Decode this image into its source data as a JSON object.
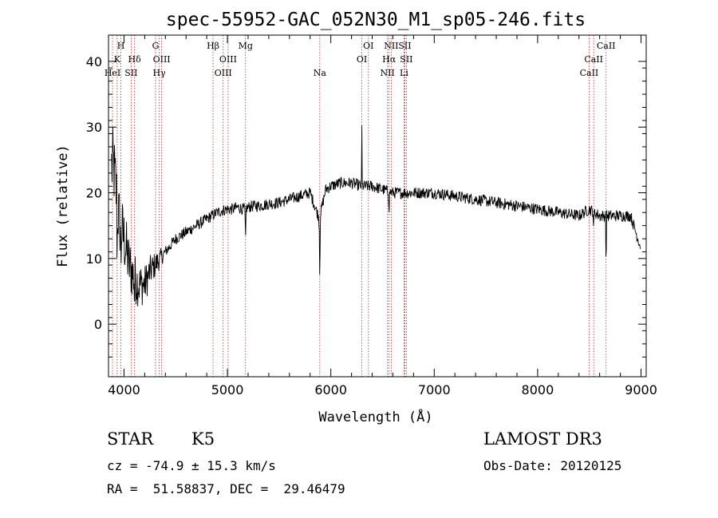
{
  "chart_data": {
    "type": "line",
    "title": "spec-55952-GAC_052N30_M1_sp05-246.fits",
    "xlabel": "Wavelength (Å)",
    "ylabel": "Flux (relative)",
    "xlim": [
      3850,
      9050
    ],
    "ylim": [
      -8,
      44
    ],
    "xticks": [
      4000,
      5000,
      6000,
      7000,
      8000,
      9000
    ],
    "yticks": [
      0,
      10,
      20,
      30,
      40
    ],
    "series": [
      {
        "name": "spectrum",
        "x": [
          3900,
          3950,
          4000,
          4050,
          4100,
          4150,
          4200,
          4250,
          4300,
          4350,
          4400,
          4450,
          4500,
          4550,
          4600,
          4650,
          4700,
          4750,
          4800,
          4850,
          4900,
          4950,
          5000,
          5050,
          5100,
          5150,
          5200,
          5250,
          5300,
          5400,
          5500,
          5600,
          5700,
          5800,
          5890,
          5950,
          6000,
          6100,
          6200,
          6300,
          6400,
          6500,
          6600,
          6700,
          6800,
          6900,
          7000,
          7200,
          7400,
          7600,
          7800,
          8000,
          8200,
          8400,
          8500,
          8600,
          8700,
          8800,
          8900,
          8990
        ],
        "y": [
          24,
          16,
          13,
          9,
          7,
          6,
          6,
          8,
          9,
          10,
          11,
          12,
          13,
          13.5,
          14,
          14.5,
          15,
          15.5,
          16,
          16.5,
          17,
          17.3,
          17.5,
          17.5,
          17.8,
          17.5,
          17.8,
          18,
          18,
          18.3,
          18.5,
          19,
          19.5,
          20,
          16,
          20.5,
          21,
          21.5,
          21.5,
          21,
          21,
          20.5,
          20,
          20,
          20,
          20,
          20,
          19.5,
          19,
          18.5,
          18,
          17.5,
          17,
          16.5,
          17.5,
          16.5,
          16.5,
          16.5,
          16.5,
          12
        ]
      }
    ],
    "spectral_lines": [
      {
        "label": "H",
        "wavelength": 3970,
        "row": 0
      },
      {
        "label": "K",
        "wavelength": 3934,
        "row": 1
      },
      {
        "label": "Hδ",
        "wavelength": 4102,
        "row": 1
      },
      {
        "label": "HeI",
        "wavelength": 3889,
        "row": 2
      },
      {
        "label": "SII",
        "wavelength": 4069,
        "row": 2
      },
      {
        "label": "G",
        "wavelength": 4305,
        "row": 0
      },
      {
        "label": "OIII",
        "wavelength": 4364,
        "row": 1
      },
      {
        "label": "Hγ",
        "wavelength": 4341,
        "row": 2
      },
      {
        "label": "Hβ",
        "wavelength": 4861,
        "row": 0
      },
      {
        "label": "OIII",
        "wavelength": 5007,
        "row": 1
      },
      {
        "label": "OIII",
        "wavelength": 4959,
        "row": 2
      },
      {
        "label": "Mg",
        "wavelength": 5175,
        "row": 0
      },
      {
        "label": "Na",
        "wavelength": 5893,
        "row": 2
      },
      {
        "label": "OI",
        "wavelength": 6364,
        "row": 0
      },
      {
        "label": "OI",
        "wavelength": 6300,
        "row": 1
      },
      {
        "label": "NII",
        "wavelength": 6584,
        "row": 0
      },
      {
        "label": "SII",
        "wavelength": 6716,
        "row": 0
      },
      {
        "label": "Hα",
        "wavelength": 6563,
        "row": 1
      },
      {
        "label": "SII",
        "wavelength": 6731,
        "row": 1
      },
      {
        "label": "NII",
        "wavelength": 6548,
        "row": 2
      },
      {
        "label": "Li",
        "wavelength": 6708,
        "row": 2
      },
      {
        "label": "CaII",
        "wavelength": 8662,
        "row": 0
      },
      {
        "label": "CaII",
        "wavelength": 8542,
        "row": 1
      },
      {
        "label": "CaII",
        "wavelength": 8498,
        "row": 2
      }
    ],
    "colors": {
      "spectrum": "#000000",
      "lines": "#cc2222",
      "axes": "#000000"
    }
  },
  "info": {
    "class": "STAR",
    "subclass": "K5",
    "survey": "LAMOST DR3",
    "redshift": "cz = -74.9 ± 15.3 km/s",
    "obs_date": "Obs-Date: 20120125",
    "coords": "RA =  51.58837, DEC =  29.46479"
  }
}
